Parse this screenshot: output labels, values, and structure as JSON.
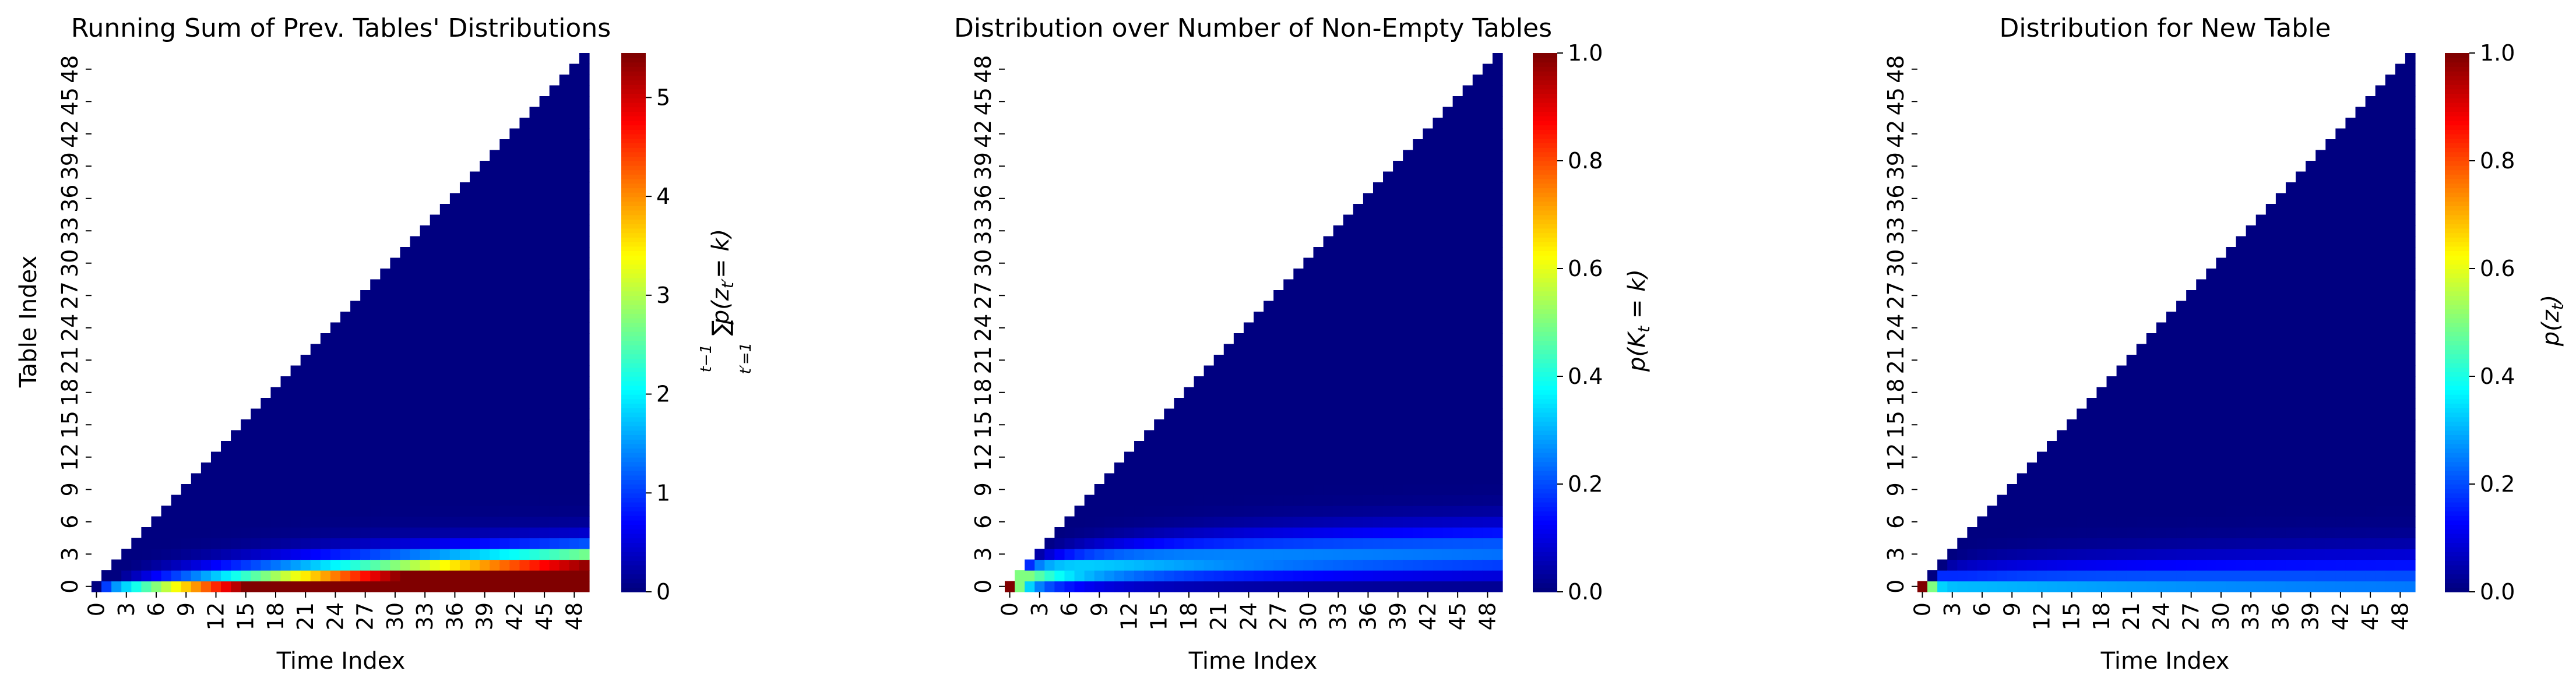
{
  "chart_data": [
    {
      "type": "heatmap",
      "title": "Running Sum of Prev. Tables' Distributions",
      "xlabel": "Time Index",
      "ylabel": "Table Index",
      "x_tick_labels": [
        "0",
        "3",
        "6",
        "9",
        "12",
        "15",
        "18",
        "21",
        "24",
        "27",
        "30",
        "33",
        "36",
        "39",
        "42",
        "45",
        "48"
      ],
      "y_tick_labels": [
        "0",
        "3",
        "6",
        "9",
        "12",
        "15",
        "18",
        "21",
        "24",
        "27",
        "30",
        "33",
        "36",
        "39",
        "42",
        "45",
        "48"
      ],
      "n_time": 50,
      "n_tables": 50,
      "colormap": "jet",
      "vmin": 0,
      "vmax": 5.45,
      "colorbar_ticks": [
        "0",
        "1",
        "2",
        "3",
        "4",
        "5"
      ],
      "colorbar_label": "∑_{t'=1}^{t-1} p(z_{t'}=k)",
      "cells_description": "upper-left triangle (k > t) empty; values ~0 above k≈20; rising to ~5.4 at k=0, t=49"
    },
    {
      "type": "heatmap",
      "title": "Distribution over Number of Non-Empty Tables",
      "xlabel": "Time Index",
      "ylabel": "",
      "x_tick_labels": [
        "0",
        "3",
        "6",
        "9",
        "12",
        "15",
        "18",
        "21",
        "24",
        "27",
        "30",
        "33",
        "36",
        "39",
        "42",
        "45",
        "48"
      ],
      "y_tick_labels": [
        "0",
        "3",
        "6",
        "9",
        "12",
        "15",
        "18",
        "21",
        "24",
        "27",
        "30",
        "33",
        "36",
        "39",
        "42",
        "45",
        "48"
      ],
      "n_time": 50,
      "n_tables": 50,
      "colormap": "jet",
      "vmin": 0,
      "vmax": 1.0,
      "colorbar_ticks": [
        "0.0",
        "0.2",
        "0.4",
        "0.6",
        "0.8",
        "1.0"
      ],
      "colorbar_label": "p(K_t = k)",
      "cells_description": "CRP posterior over number of tables; p=1.0 at t=0,k=0; mass centered near k≈ alpha·log(t), values ~0.15 at t=49"
    },
    {
      "type": "heatmap",
      "title": "Distribution for New Table",
      "xlabel": "Time Index",
      "ylabel": "",
      "x_tick_labels": [
        "0",
        "3",
        "6",
        "9",
        "12",
        "15",
        "18",
        "21",
        "24",
        "27",
        "30",
        "33",
        "36",
        "39",
        "42",
        "45",
        "48"
      ],
      "y_tick_labels": [
        "0",
        "3",
        "6",
        "9",
        "12",
        "15",
        "18",
        "21",
        "24",
        "27",
        "30",
        "33",
        "36",
        "39",
        "42",
        "45",
        "48"
      ],
      "n_time": 50,
      "n_tables": 50,
      "colormap": "jet",
      "vmin": 0,
      "vmax": 1.0,
      "colorbar_ticks": [
        "0.0",
        "0.2",
        "0.4",
        "0.6",
        "0.8",
        "1.0"
      ],
      "colorbar_label": "p(z_t)",
      "cells_description": "p=1.0 at t=0,k=0; decays quickly; k=0 row near 0.15 and decreasing along time"
    }
  ]
}
